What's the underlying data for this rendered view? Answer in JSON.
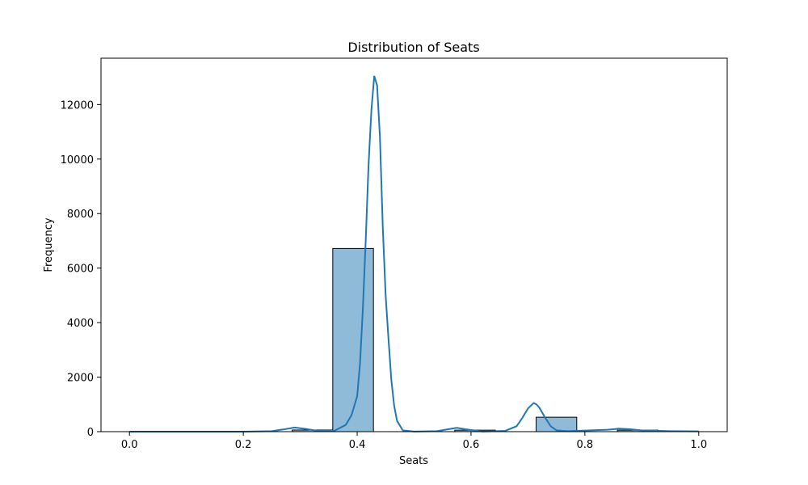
{
  "chart_data": {
    "type": "bar",
    "title": "Distribution of Seats",
    "xlabel": "Seats",
    "ylabel": "Frequency",
    "xlim": [
      -0.05,
      1.05
    ],
    "ylim": [
      0,
      13700
    ],
    "x_ticks": [
      0.0,
      0.2,
      0.4,
      0.6,
      0.8,
      1.0
    ],
    "x_tick_labels": [
      "0.0",
      "0.2",
      "0.4",
      "0.6",
      "0.8",
      "1.0"
    ],
    "y_ticks": [
      0,
      2000,
      4000,
      6000,
      8000,
      10000,
      12000
    ],
    "y_tick_labels": [
      "0",
      "2000",
      "4000",
      "6000",
      "8000",
      "10000",
      "12000"
    ],
    "grid": false,
    "bar_color": "#8fbbd9",
    "bar_edge_color": "#000000",
    "line_color": "#1f77b4",
    "bins": [
      {
        "start": 0.2857,
        "end": 0.3571,
        "count": 60
      },
      {
        "start": 0.3571,
        "end": 0.4286,
        "count": 6720
      },
      {
        "start": 0.5714,
        "end": 0.6429,
        "count": 55
      },
      {
        "start": 0.7143,
        "end": 0.7857,
        "count": 530
      },
      {
        "start": 0.8571,
        "end": 0.9286,
        "count": 55
      }
    ],
    "kde": {
      "x": [
        0.0,
        0.1,
        0.2,
        0.25,
        0.27,
        0.29,
        0.31,
        0.33,
        0.36,
        0.38,
        0.39,
        0.4,
        0.405,
        0.41,
        0.415,
        0.42,
        0.425,
        0.43,
        0.435,
        0.44,
        0.445,
        0.45,
        0.455,
        0.46,
        0.465,
        0.47,
        0.48,
        0.5,
        0.54,
        0.56,
        0.575,
        0.59,
        0.62,
        0.66,
        0.68,
        0.69,
        0.7,
        0.71,
        0.715,
        0.72,
        0.73,
        0.74,
        0.75,
        0.77,
        0.8,
        0.84,
        0.86,
        0.88,
        0.9,
        0.95,
        1.0
      ],
      "y": [
        0,
        0,
        0,
        20,
        80,
        150,
        100,
        30,
        30,
        250,
        600,
        1300,
        2500,
        4500,
        7000,
        9800,
        11800,
        13050,
        12700,
        10800,
        7500,
        5000,
        3400,
        1900,
        950,
        400,
        50,
        5,
        20,
        90,
        140,
        90,
        5,
        30,
        200,
        500,
        850,
        1050,
        1000,
        880,
        520,
        200,
        50,
        20,
        40,
        70,
        110,
        90,
        45,
        20,
        10
      ]
    }
  }
}
